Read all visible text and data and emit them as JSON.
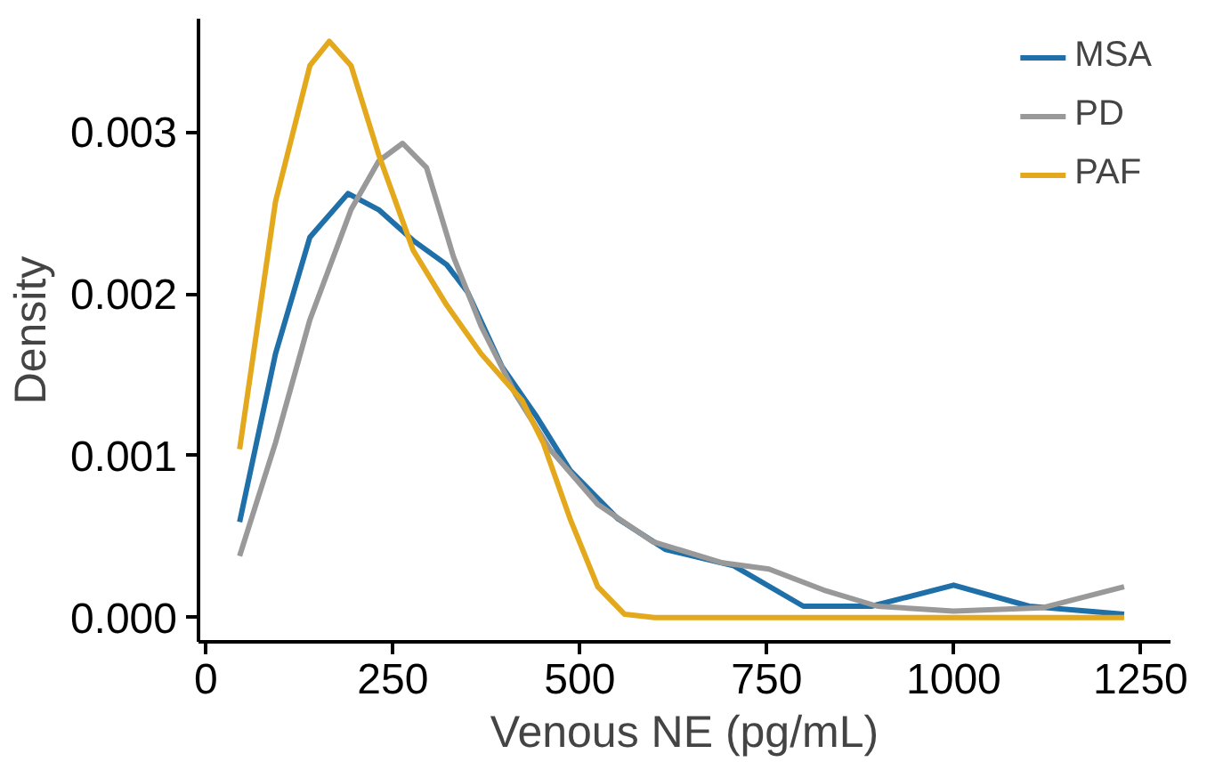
{
  "chart_data": {
    "type": "line",
    "xlabel": "Venous NE (pg/mL)",
    "ylabel": "Density",
    "xlim": [
      -10,
      1290
    ],
    "ylim": [
      -0.00015,
      0.0037
    ],
    "xticks": [
      0,
      250,
      500,
      750,
      1000,
      1250
    ],
    "yticks": [
      {
        "value": 0,
        "label": "0.000"
      },
      {
        "value": 0.001,
        "label": "0.001"
      },
      {
        "value": 0.002,
        "label": "0.002"
      },
      {
        "value": 0.003,
        "label": "0.003"
      }
    ],
    "grid": false,
    "legend": "top right",
    "line_style": "solid",
    "marker": "none",
    "series": [
      {
        "name": "MSA",
        "color": "#1f6fa8",
        "x": [
          45,
          93,
          139,
          190,
          231,
          277,
          322,
          350,
          396,
          441,
          487,
          551,
          615,
          706,
          799,
          890,
          1000,
          1101,
          1228
        ],
        "values": [
          0.00059,
          0.00163,
          0.00235,
          0.00262,
          0.00252,
          0.00233,
          0.00218,
          0.00201,
          0.00155,
          0.00125,
          0.00091,
          0.00061,
          0.00042,
          0.00032,
          7e-05,
          7e-05,
          0.0002,
          7e-05,
          2e-05
        ]
      },
      {
        "name": "PD",
        "color": "#999999",
        "x": [
          45,
          93,
          139,
          194,
          231,
          263,
          295,
          331,
          368,
          414,
          460,
          524,
          597,
          689,
          753,
          826,
          898,
          1000,
          1118,
          1228
        ],
        "values": [
          0.00038,
          0.00108,
          0.00184,
          0.00252,
          0.00282,
          0.00293,
          0.00278,
          0.00223,
          0.0018,
          0.00138,
          0.00104,
          0.0007,
          0.00047,
          0.00034,
          0.0003,
          0.00017,
          7e-05,
          4e-05,
          6e-05,
          0.00019
        ]
      },
      {
        "name": "PAF",
        "color": "#e3a81c",
        "x": [
          45,
          93,
          139,
          165,
          194,
          231,
          277,
          322,
          368,
          423,
          451,
          487,
          524,
          560,
          600,
          800,
          1000,
          1228
        ],
        "values": [
          0.00104,
          0.00257,
          0.00341,
          0.00356,
          0.00341,
          0.00286,
          0.00227,
          0.00193,
          0.00163,
          0.00134,
          0.00108,
          0.00061,
          0.00019,
          2e-05,
          0,
          0,
          0,
          0
        ]
      }
    ]
  }
}
